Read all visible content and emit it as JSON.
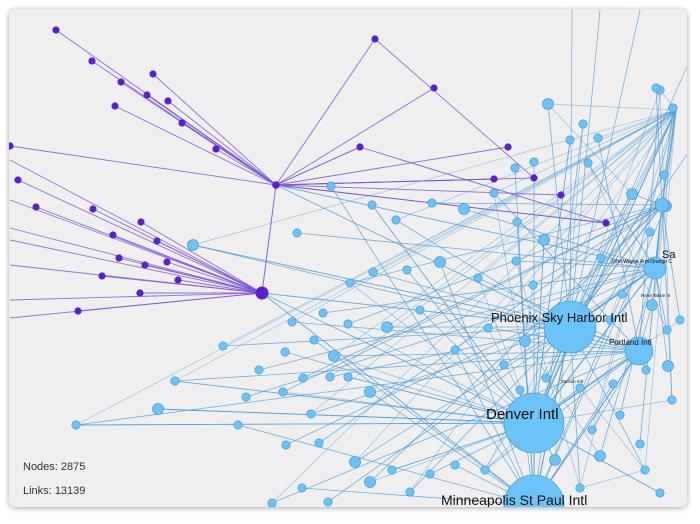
{
  "stats": {
    "nodes_label": "Nodes:",
    "nodes_value": "2875",
    "links_label": "Links:",
    "links_value": "13139"
  },
  "colors": {
    "background": "#efefef",
    "purple_node": "#5a1fd0",
    "purple_link": "#7a55d8",
    "blue_node": "#6cc3f7",
    "blue_node_stroke": "#3d8fd0",
    "blue_link": "#4c9ad6",
    "label_text": "#111111"
  },
  "airport_labels": {
    "phoenix": "Phoenix Sky Harbor Intl",
    "denver": "Denver Intl",
    "portland": "Portland Intl",
    "san_partial": "Sa",
    "john_wayne": "John Wayne Arpt Orange C",
    "tucson": "Tucson Intl",
    "reno_tahoe": "Reno Tahoe In",
    "minneapolis_partial": "Minneapolis St Paul Intl"
  }
}
